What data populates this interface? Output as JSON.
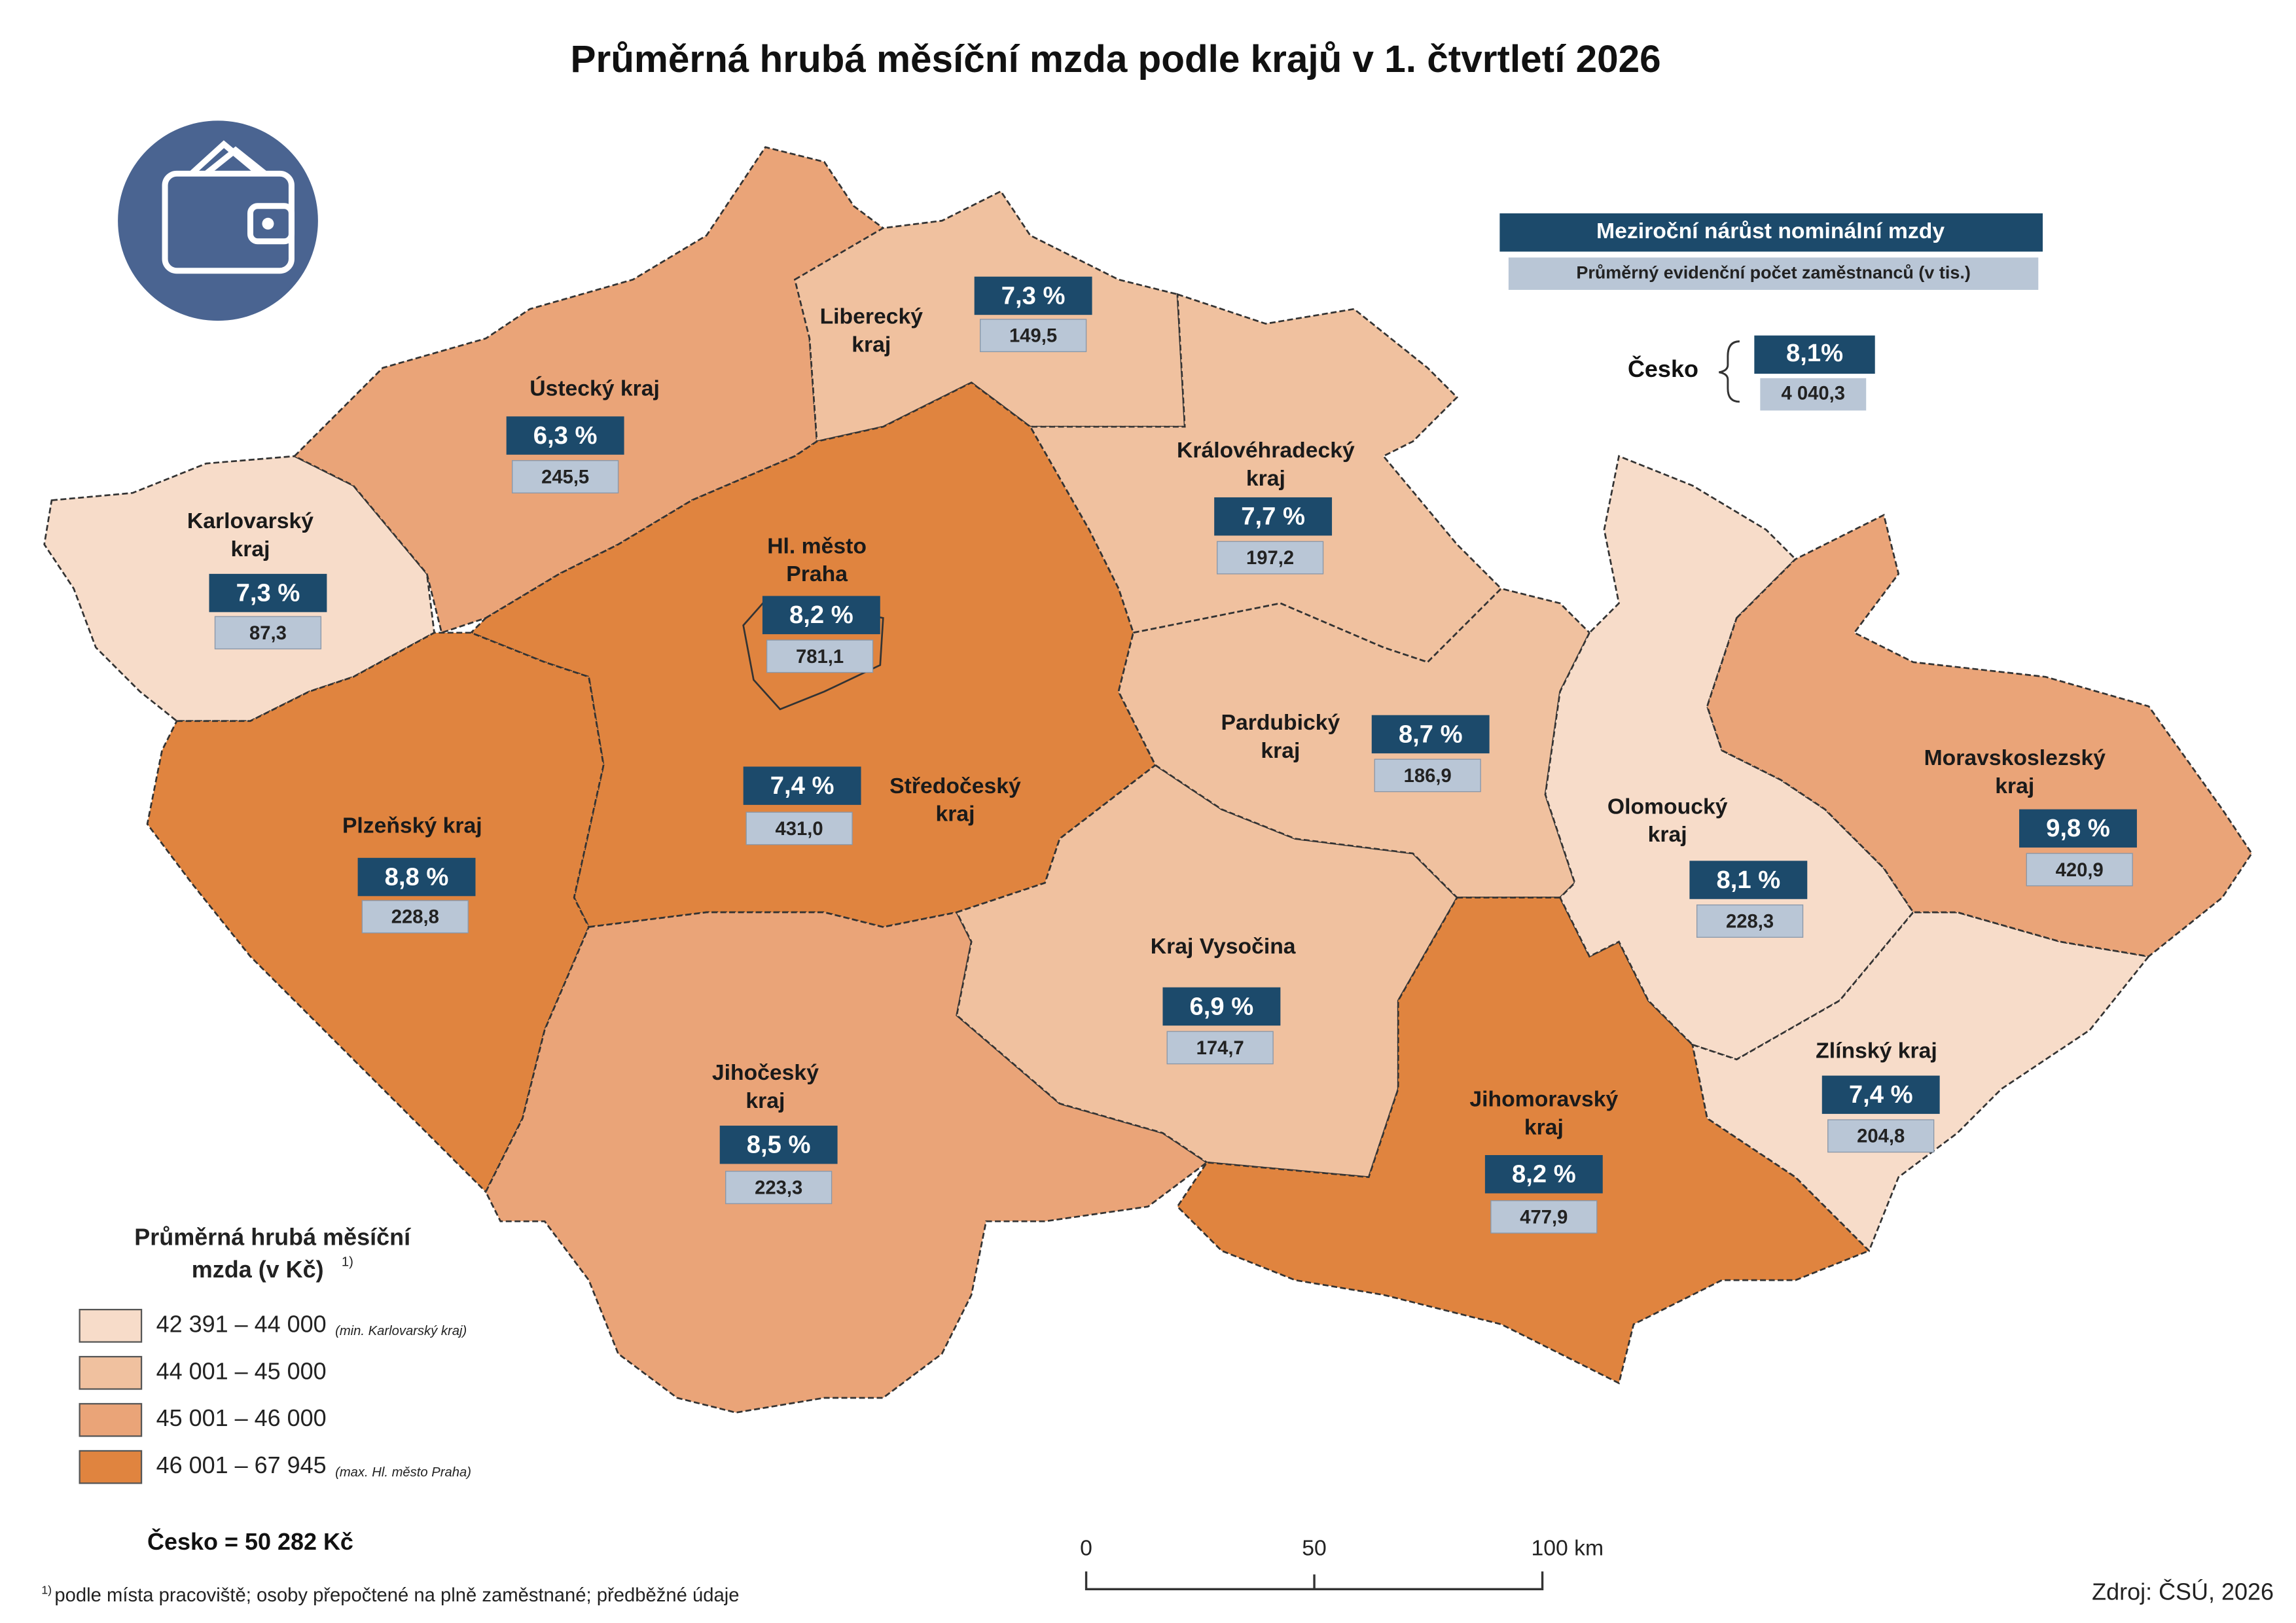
{
  "title": "Průměrná hrubá měsíční mzda podle krajů v 1. čtvrtletí 2026",
  "legend_header": {
    "growth": "Meziroční nárůst nominální mzdy",
    "employees": "Průměrný evidenční počet zaměstnanců (v tis.)"
  },
  "country": {
    "name": "Česko",
    "growth": "8,1%",
    "employees": "4 040,3"
  },
  "regions": [
    {
      "name": [
        "Karlovarský",
        "kraj"
      ],
      "growth": "7,3 %",
      "employees": "87,3",
      "color": "#f7dcc9"
    },
    {
      "name": [
        "Ústecký kraj"
      ],
      "growth": "6,3 %",
      "employees": "245,5",
      "color": "#eaa478"
    },
    {
      "name": [
        "Liberecký",
        "kraj"
      ],
      "growth": "7,3 %",
      "employees": "149,5",
      "color": "#f0c19f"
    },
    {
      "name": [
        "Královéhradecký",
        "kraj"
      ],
      "growth": "7,7 %",
      "employees": "197,2",
      "color": "#f0c19f"
    },
    {
      "name": [
        "Středočeský",
        "kraj"
      ],
      "growth": "7,4 %",
      "employees": "431,0",
      "color": "#e0843f"
    },
    {
      "name": [
        "Hl. město",
        "Praha"
      ],
      "growth": "8,2 %",
      "employees": "781,1",
      "color": "#e0843f"
    },
    {
      "name": [
        "Plzeňský kraj"
      ],
      "growth": "8,8 %",
      "employees": "228,8",
      "color": "#e0843f"
    },
    {
      "name": [
        "Jihočeský",
        "kraj"
      ],
      "growth": "8,5 %",
      "employees": "223,3",
      "color": "#eaa478"
    },
    {
      "name": [
        "Kraj Vysočina"
      ],
      "growth": "6,9 %",
      "employees": "174,7",
      "color": "#f0c19f"
    },
    {
      "name": [
        "Pardubický",
        "kraj"
      ],
      "growth": "8,7 %",
      "employees": "186,9",
      "color": "#f0c19f"
    },
    {
      "name": [
        "Jihomoravský",
        "kraj"
      ],
      "growth": "8,2 %",
      "employees": "477,9",
      "color": "#e0843f"
    },
    {
      "name": [
        "Olomoucký",
        "kraj"
      ],
      "growth": "8,1 %",
      "employees": "228,3",
      "color": "#f7dcc9"
    },
    {
      "name": [
        "Zlínský kraj"
      ],
      "growth": "7,4 %",
      "employees": "204,8",
      "color": "#f7dcc9"
    },
    {
      "name": [
        "Moravskoslezský",
        "kraj"
      ],
      "growth": "9,8 %",
      "employees": "420,9",
      "color": "#eaa478"
    }
  ],
  "legend": {
    "title": [
      "Průměrná hrubá měsíční",
      "mzda (v Kč)"
    ],
    "title_note": "1)",
    "items": [
      {
        "label": "42 391 – 44 000",
        "note": "(min. Karlovarský kraj)",
        "color": "#f7dcc9"
      },
      {
        "label": "44 001 – 45 000",
        "color": "#f0c19f"
      },
      {
        "label": "45 001 – 46 000",
        "color": "#eaa478"
      },
      {
        "label": "46 001 – 67 945",
        "note": "(max. Hl. město Praha)",
        "color": "#e0843f"
      }
    ]
  },
  "total": "Česko = 50 282 Kč",
  "footnote": {
    "mark": "1)",
    "text": "podle místa pracoviště; osoby přepočtené na plně zaměstnané; předběžné údaje"
  },
  "scale": [
    "0",
    "50",
    "100 km"
  ],
  "source": "Zdroj: ČSÚ, 2026"
}
